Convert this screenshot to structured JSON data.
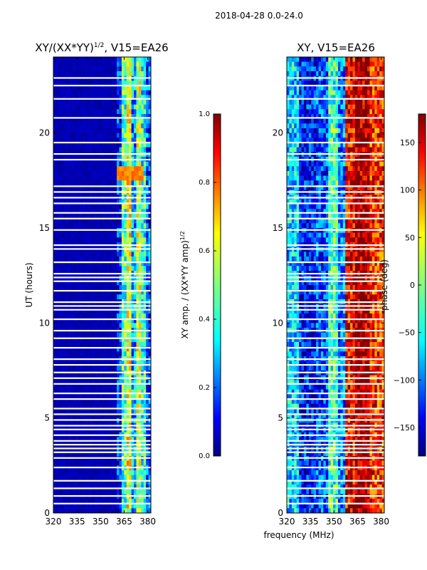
{
  "figure": {
    "suptitle": "2018-04-28 0.0-24.0",
    "shared_xlabel": "frequency (MHz)"
  },
  "colormap": [
    "#00007f",
    "#0000ff",
    "#007fff",
    "#00ffff",
    "#7fff7f",
    "#ffff00",
    "#ff7f00",
    "#ff0000",
    "#7f0000"
  ],
  "chart_data": [
    {
      "type": "heatmap",
      "title_main": "XY/(XX*YY)",
      "title_sup": "1/2",
      "title_rest": ", V15=EA26",
      "xlabel": "",
      "ylabel": "UT (hours)",
      "xlim": [
        320,
        382
      ],
      "ylim": [
        0,
        24
      ],
      "xticks": [
        320,
        335,
        350,
        365,
        380
      ],
      "yticks": [
        0,
        5,
        10,
        15,
        20
      ],
      "colorbar": {
        "label_main": "XY amp. / (XX*YY amp)",
        "label_sup": "1/2",
        "vmin": 0.0,
        "vmax": 1.0,
        "ticks": [
          "0.0",
          "0.2",
          "0.4",
          "0.6",
          "0.8",
          "1.0"
        ]
      },
      "band_start_mhz": 360,
      "background_level": 0.05,
      "band_levels": [
        0.15,
        0.45,
        0.6,
        0.3,
        0.55,
        0.4,
        0.2
      ],
      "high_patch": {
        "x": [
          360,
          378
        ],
        "y": [
          17.5,
          18.3
        ],
        "level": 0.75
      },
      "flagged_rows_ut": [
        22.9,
        22.5,
        21.8,
        20.8,
        19.5,
        18.9,
        18.6,
        17.2,
        16.9,
        16.6,
        16.3,
        15.8,
        15.5,
        14.9,
        14.1,
        13.9,
        13.2,
        12.6,
        12.4,
        12.2,
        11.7,
        11.1,
        10.9,
        10.7,
        10.2,
        9.6,
        9.2,
        8.7,
        8.1,
        7.8,
        7.4,
        7.1,
        6.8,
        6.3,
        6.0,
        5.5,
        5.2,
        4.9,
        4.6,
        4.4,
        4.1,
        3.8,
        3.6,
        3.4,
        3.2,
        2.9,
        2.4,
        1.7,
        1.3,
        0.9,
        0.5
      ]
    },
    {
      "type": "heatmap",
      "title_main": "XY, V15=EA26",
      "xlabel": "",
      "ylabel": "",
      "xlim": [
        320,
        382
      ],
      "ylim": [
        0,
        24
      ],
      "xticks": [
        320,
        335,
        350,
        365,
        380
      ],
      "yticks": [
        0,
        5,
        10,
        15,
        20
      ],
      "colorbar": {
        "label_main": "phase (deg)",
        "vmin": -180,
        "vmax": 180,
        "ticks": [
          "−150",
          "−100",
          "−50",
          "0",
          "50",
          "100",
          "150"
        ],
        "tick_values": [
          -150,
          -100,
          -50,
          0,
          50,
          100,
          150
        ]
      },
      "phase_bands_deg": [
        {
          "x": [
            320,
            328
          ],
          "deg": -60
        },
        {
          "x": [
            328,
            338
          ],
          "deg": -130
        },
        {
          "x": [
            338,
            347
          ],
          "deg": -110
        },
        {
          "x": [
            347,
            352
          ],
          "deg": -20
        },
        {
          "x": [
            352,
            357
          ],
          "deg": -90
        },
        {
          "x": [
            357,
            364
          ],
          "deg": 140
        },
        {
          "x": [
            364,
            372
          ],
          "deg": 170
        },
        {
          "x": [
            372,
            382
          ],
          "deg": 120
        }
      ],
      "flagged_rows_ut": [
        22.9,
        22.5,
        21.8,
        20.8,
        19.5,
        18.9,
        18.6,
        17.2,
        16.9,
        16.6,
        16.3,
        15.8,
        15.5,
        14.9,
        14.1,
        13.9,
        13.2,
        12.6,
        12.4,
        12.2,
        11.7,
        11.1,
        10.9,
        10.7,
        10.2,
        9.6,
        9.2,
        8.7,
        8.1,
        7.8,
        7.4,
        7.1,
        6.8,
        6.3,
        6.0,
        5.5,
        5.2,
        4.9,
        4.6,
        4.4,
        4.1,
        3.8,
        3.6,
        3.4,
        3.2,
        2.9,
        2.4,
        1.7,
        1.3,
        0.9,
        0.5
      ]
    }
  ]
}
